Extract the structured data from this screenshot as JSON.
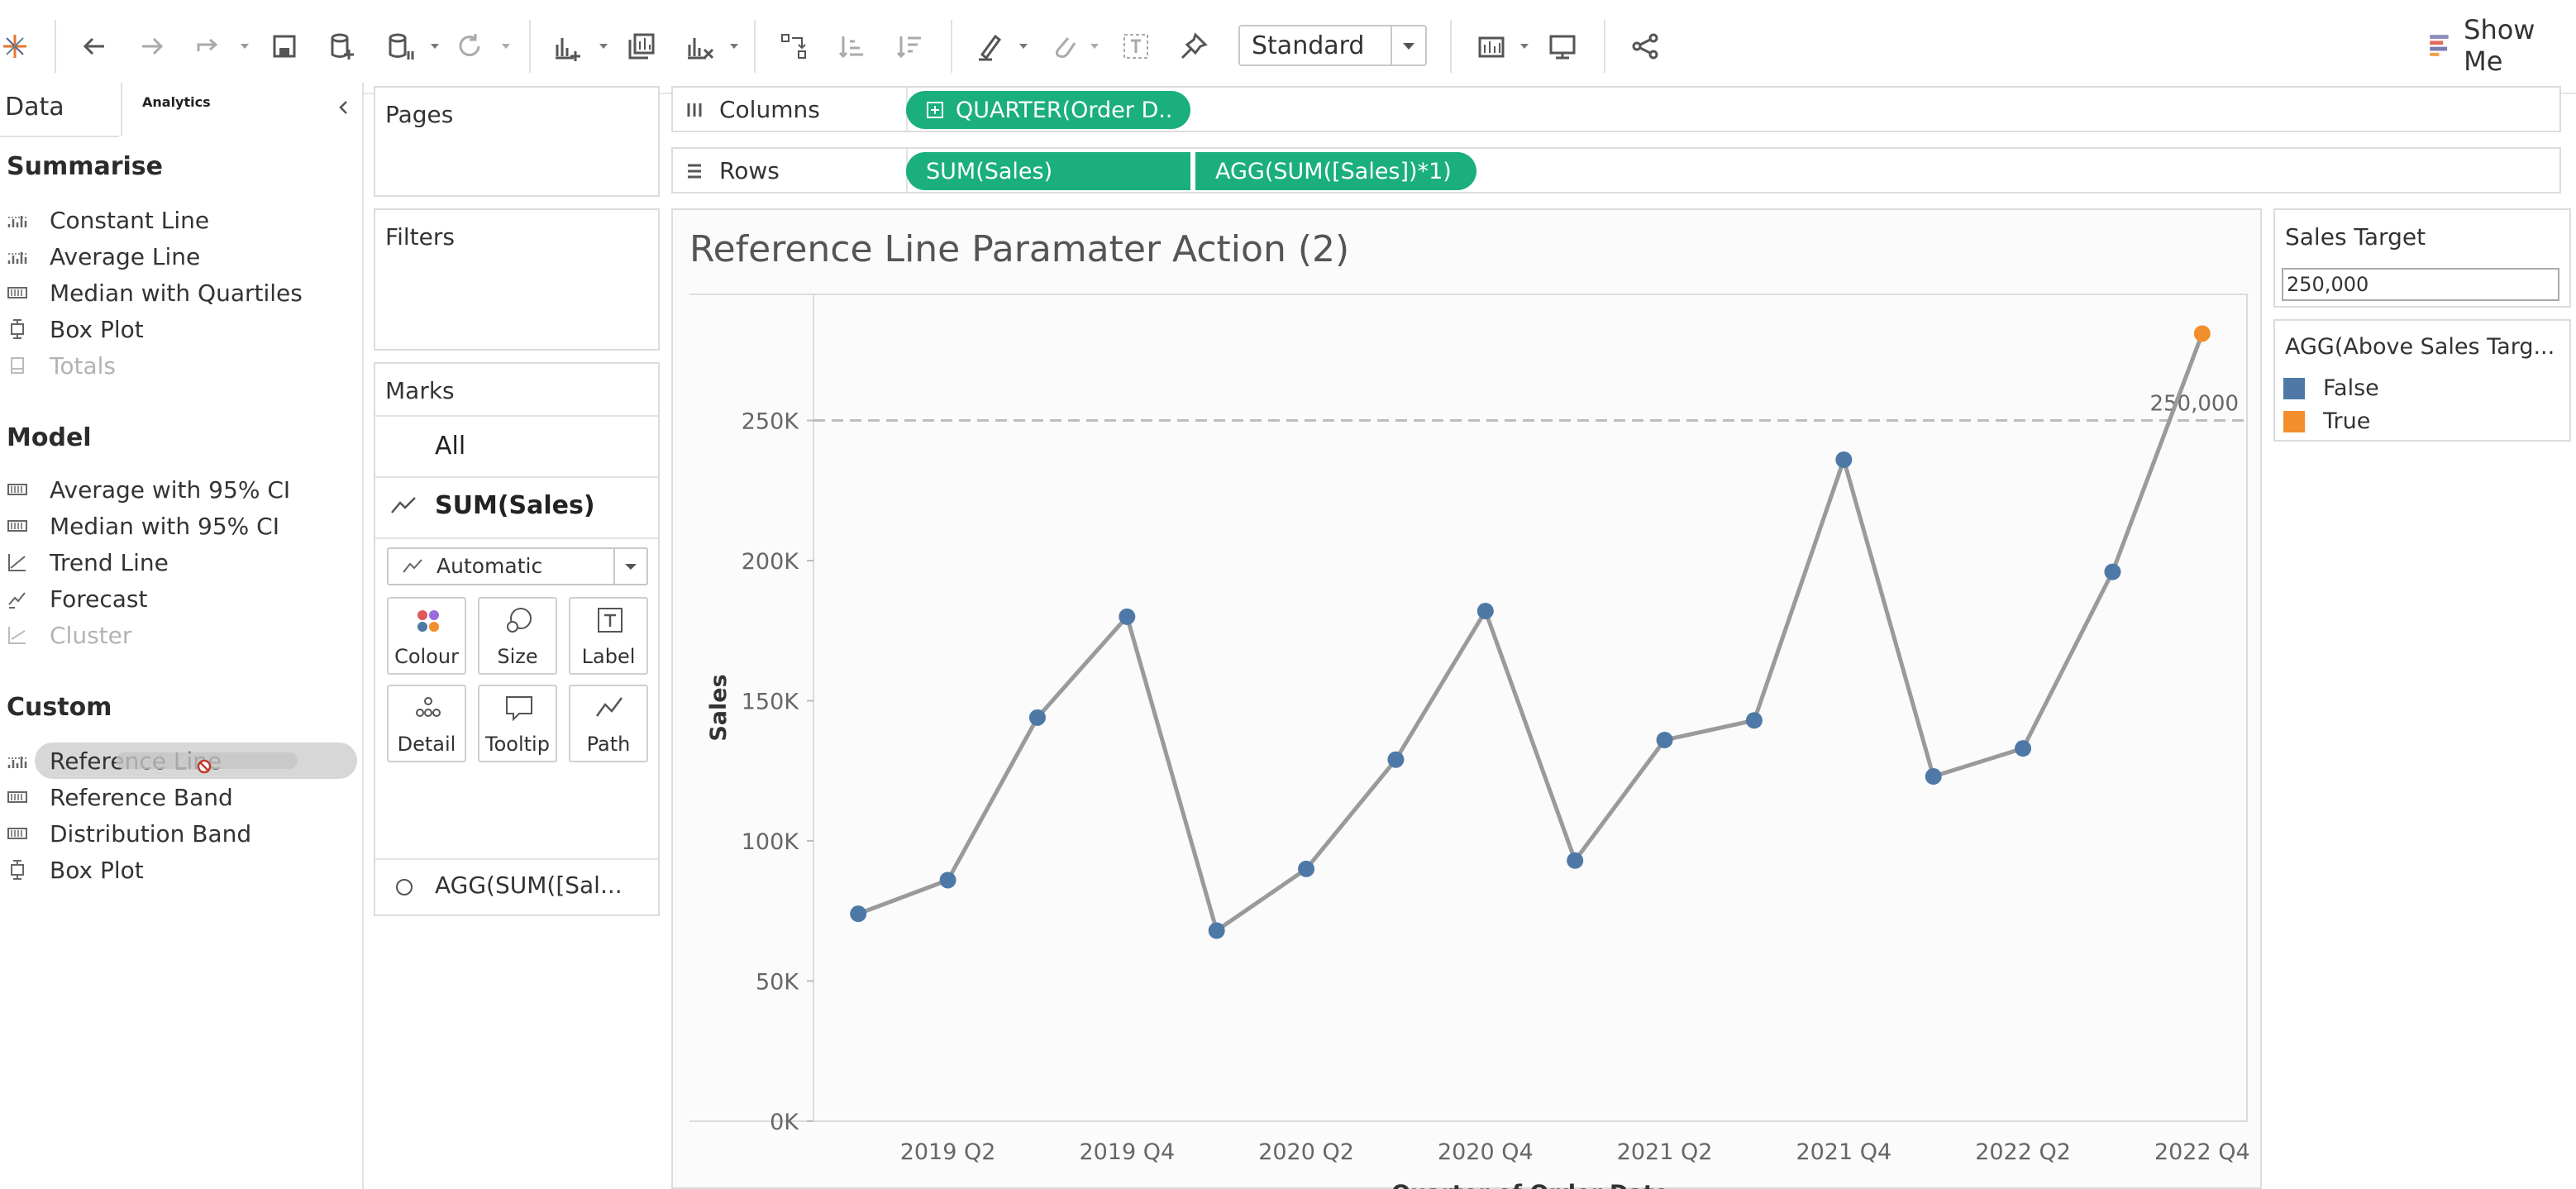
{
  "toolbar": {
    "fit_value": "Standard",
    "show_me_label": "Show Me"
  },
  "left_pane": {
    "tabs": {
      "data": "Data",
      "analytics": "Analytics"
    },
    "sections": [
      {
        "title": "Summarise",
        "items": [
          {
            "label": "Constant Line",
            "icon": "constant-line-icon",
            "enabled": true
          },
          {
            "label": "Average Line",
            "icon": "average-line-icon",
            "enabled": true
          },
          {
            "label": "Median with Quartiles",
            "icon": "median-quartiles-icon",
            "enabled": true
          },
          {
            "label": "Box Plot",
            "icon": "box-plot-icon",
            "enabled": true
          },
          {
            "label": "Totals",
            "icon": "totals-icon",
            "enabled": false
          }
        ]
      },
      {
        "title": "Model",
        "items": [
          {
            "label": "Average with 95% CI",
            "icon": "average-ci-icon",
            "enabled": true
          },
          {
            "label": "Median with 95% CI",
            "icon": "median-ci-icon",
            "enabled": true
          },
          {
            "label": "Trend Line",
            "icon": "trend-line-icon",
            "enabled": true
          },
          {
            "label": "Forecast",
            "icon": "forecast-icon",
            "enabled": true
          },
          {
            "label": "Cluster",
            "icon": "cluster-icon",
            "enabled": false
          }
        ]
      },
      {
        "title": "Custom",
        "items": [
          {
            "label": "Reference Line",
            "icon": "reference-line-icon",
            "enabled": true,
            "dragging": true
          },
          {
            "label": "Reference Band",
            "icon": "reference-band-icon",
            "enabled": true
          },
          {
            "label": "Distribution Band",
            "icon": "distribution-band-icon",
            "enabled": true
          },
          {
            "label": "Box Plot",
            "icon": "box-plot-icon",
            "enabled": true
          }
        ]
      }
    ]
  },
  "cards": {
    "pages": "Pages",
    "filters": "Filters",
    "marks": "Marks",
    "marks_all": "All",
    "marks_sum_sales": "SUM(Sales)",
    "mark_type": "Automatic",
    "mark_buttons": {
      "colour": "Colour",
      "size": "Size",
      "label": "Label",
      "detail": "Detail",
      "tooltip": "Tooltip",
      "path": "Path"
    },
    "marks_agg": "AGG(SUM([Sal..."
  },
  "shelves": {
    "columns_label": "Columns",
    "rows_label": "Rows",
    "columns_pill": "QUARTER(Order D..",
    "rows_pill_1": "SUM(Sales)",
    "rows_pill_2": "AGG(SUM([Sales])*1)"
  },
  "viz": {
    "title": "Reference Line Paramater Action (2)"
  },
  "parameter": {
    "title": "Sales Target",
    "value": "250,000"
  },
  "legend": {
    "title": "AGG(Above Sales Targ...",
    "items": [
      {
        "label": "False",
        "color": "#4e79a7"
      },
      {
        "label": "True",
        "color": "#f28e2b"
      }
    ]
  },
  "colors": {
    "pill": "#1aaf7d",
    "false_mark": "#4e79a7",
    "true_mark": "#f28e2b",
    "line": "#9a9a9a",
    "reference": "#bdbdbd"
  },
  "chart_data": {
    "type": "line",
    "title": "Reference Line Paramater Action (2)",
    "ylabel": "Sales",
    "xlabel": "Quarter of Order Date",
    "x": [
      "2019 Q1",
      "2019 Q2",
      "2019 Q3",
      "2019 Q4",
      "2020 Q1",
      "2020 Q2",
      "2020 Q3",
      "2020 Q4",
      "2021 Q1",
      "2021 Q2",
      "2021 Q3",
      "2021 Q4",
      "2022 Q1",
      "2022 Q2",
      "2022 Q3",
      "2022 Q4"
    ],
    "values": [
      74000,
      86000,
      144000,
      180000,
      68000,
      90000,
      129000,
      182000,
      93000,
      136000,
      143000,
      236000,
      123000,
      133000,
      196000,
      281000
    ],
    "above_target": [
      false,
      false,
      false,
      false,
      false,
      false,
      false,
      false,
      false,
      false,
      false,
      false,
      false,
      false,
      false,
      true
    ],
    "x_tick_labels": [
      "2019 Q2",
      "2019 Q4",
      "2020 Q2",
      "2020 Q4",
      "2021 Q2",
      "2021 Q4",
      "2022 Q2",
      "2022 Q4"
    ],
    "y_ticks": [
      0,
      50000,
      100000,
      150000,
      200000,
      250000
    ],
    "y_tick_labels": [
      "0K",
      "50K",
      "100K",
      "150K",
      "200K",
      "250K"
    ],
    "ylim": [
      0,
      295000
    ],
    "reference_line": {
      "value": 250000,
      "label": "250,000"
    },
    "grid": false
  }
}
